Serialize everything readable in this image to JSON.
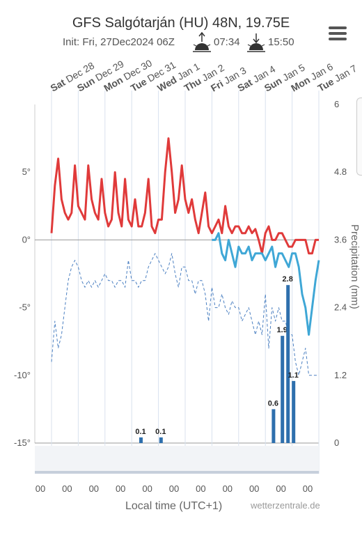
{
  "header": {
    "title": "GFS Salgótarján (HU) 48N, 19.75E",
    "init": "Init: Fri, 27Dec2024 06Z",
    "sunrise": "07:34",
    "sunset": "15:50"
  },
  "footer": {
    "xlabel": "Local time (UTC+1)",
    "brand": "wetterzentrale.de"
  },
  "chart_data": {
    "type": "line",
    "days": [
      {
        "dow": "Sat",
        "date": "Dec 28"
      },
      {
        "dow": "Sun",
        "date": "Dec 29"
      },
      {
        "dow": "Mon",
        "date": "Dec 30"
      },
      {
        "dow": "Tue",
        "date": "Dec 31"
      },
      {
        "dow": "Wed",
        "date": "Jan 1"
      },
      {
        "dow": "Thu",
        "date": "Jan 2"
      },
      {
        "dow": "Fri",
        "date": "Jan 3"
      },
      {
        "dow": "Sat",
        "date": "Jan 4"
      },
      {
        "dow": "Sun",
        "date": "Jan 5"
      },
      {
        "dow": "Mon",
        "date": "Jan 6"
      },
      {
        "dow": "Tue",
        "date": "Jan 7"
      }
    ],
    "x_tick_label": "00",
    "y_left": {
      "ticks": [
        "5°",
        "0°",
        "-5°",
        "-10°",
        "-15°"
      ],
      "values": [
        5,
        0,
        -5,
        -10,
        -15
      ],
      "ylim": [
        -15,
        10
      ]
    },
    "y_right": {
      "label": "Precipitation (mm)",
      "ticks": [
        "6",
        "4.8",
        "3.6",
        "2.4",
        "1.2",
        "0"
      ],
      "values": [
        6,
        4.8,
        3.6,
        2.4,
        1.2,
        0
      ],
      "ylim": [
        0,
        6
      ]
    },
    "series": [
      {
        "kind": "tmax",
        "color": "#e03a3a",
        "x": [
          0,
          3,
          6,
          9,
          12,
          15,
          18,
          21,
          24,
          27,
          30,
          33,
          36,
          39,
          42,
          45,
          48,
          51,
          54,
          57,
          60,
          63,
          66,
          69,
          72,
          75,
          78,
          81,
          84,
          87,
          90,
          93,
          96,
          99,
          102,
          105,
          108,
          111,
          114,
          117,
          120,
          123,
          126,
          129,
          132,
          135,
          138,
          141,
          144,
          147,
          150,
          153,
          156,
          159,
          162,
          165,
          168,
          171,
          174,
          177,
          180,
          183,
          186,
          189,
          192,
          195,
          198,
          201,
          204,
          207,
          210,
          213,
          216,
          219,
          222,
          225,
          228,
          231,
          234,
          237,
          240
        ],
        "values": [
          0.5,
          4,
          6,
          3,
          2,
          1.5,
          2,
          5.5,
          2.5,
          2,
          1.5,
          5.5,
          3,
          2,
          1.5,
          4.5,
          2,
          1,
          1.5,
          5,
          2,
          1,
          4.5,
          1.5,
          1,
          3,
          1,
          1,
          2,
          4.5,
          1,
          0.5,
          1.5,
          1.5,
          5,
          7.5,
          5,
          2,
          3,
          5.5,
          3,
          2,
          3,
          1.5,
          0.5,
          2,
          3.5,
          1,
          0.5,
          1,
          1.5,
          0.5,
          2.5,
          1,
          0.5,
          1,
          1,
          0.5,
          0.5,
          1,
          0.5,
          0.8,
          0,
          -1,
          0.5,
          1,
          0,
          0,
          0.5,
          0.5,
          0,
          -0.5,
          -0.5,
          0,
          0,
          0,
          0,
          -1,
          -1,
          0,
          0
        ]
      },
      {
        "kind": "tmin",
        "color": "#3fa7d6",
        "x": [
          144,
          147,
          150,
          153,
          156,
          159,
          162,
          165,
          168,
          171,
          174,
          177,
          180,
          183,
          186,
          189,
          192,
          195,
          198,
          201,
          204,
          207,
          210,
          213,
          216,
          219,
          222,
          225,
          228,
          231,
          234,
          237,
          240
        ],
        "values": [
          0,
          0,
          0.5,
          -1,
          -1.5,
          0,
          -1,
          -2,
          -0.5,
          -1,
          -1,
          -0.5,
          -1.5,
          -1,
          -1,
          -1,
          -1.5,
          -1,
          -0.5,
          -2,
          -1,
          -1,
          -1.5,
          -2,
          -1,
          -1,
          -2,
          -4,
          -5,
          -7,
          -5,
          -3,
          -1.5
        ]
      },
      {
        "kind": "dewpoint",
        "color": "#4a7fc1",
        "x": [
          0,
          3,
          6,
          9,
          12,
          15,
          18,
          21,
          24,
          27,
          30,
          33,
          36,
          39,
          42,
          45,
          48,
          51,
          54,
          57,
          60,
          63,
          66,
          69,
          72,
          75,
          78,
          81,
          84,
          87,
          90,
          93,
          96,
          99,
          102,
          105,
          108,
          111,
          114,
          117,
          120,
          123,
          126,
          129,
          132,
          135,
          138,
          141,
          144,
          147,
          150,
          153,
          156,
          159,
          162,
          165,
          168,
          171,
          174,
          177,
          180,
          183,
          186,
          189,
          192,
          195,
          198,
          201,
          204,
          207,
          210,
          213,
          216,
          219,
          222,
          225,
          228,
          231,
          234,
          237,
          240
        ],
        "values": [
          -9,
          -6,
          -8,
          -7,
          -5,
          -3,
          -2,
          -1.5,
          -2,
          -3,
          -3.5,
          -3,
          -3.5,
          -3,
          -3.5,
          -3,
          -2.5,
          -3,
          -3,
          -3.5,
          -3,
          -3,
          -3.5,
          -1.5,
          -3,
          -3,
          -3.5,
          -3,
          -3,
          -2,
          -1.5,
          -1,
          -1.5,
          -2,
          -2.5,
          -2,
          -1,
          -2.5,
          -3.5,
          -2,
          -2,
          -3,
          -3,
          -4,
          -3,
          -3,
          -4,
          -6,
          -3.5,
          -5,
          -5,
          -4,
          -5,
          -5.5,
          -4.5,
          -5,
          -5,
          -6,
          -5.5,
          -5,
          -6,
          -7,
          -6,
          -7,
          -4,
          -8,
          -5,
          -6,
          -5,
          -6,
          -6,
          -7,
          -7,
          -9,
          -10,
          -9,
          -8,
          -10,
          -10,
          -10,
          -10
        ]
      }
    ],
    "precip": {
      "x": [
        80,
        98,
        199,
        207,
        212,
        217
      ],
      "values": [
        0.1,
        0.1,
        0.6,
        1.9,
        2.8,
        1.1
      ],
      "labels": [
        "0.1",
        "0.1",
        "0.6",
        "1.9",
        "2.8",
        "1.1"
      ],
      "color": "#2e6fad"
    }
  }
}
